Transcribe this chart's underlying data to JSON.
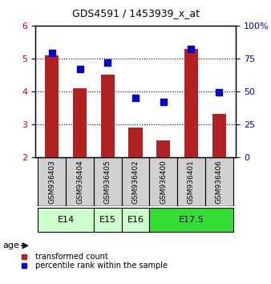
{
  "title": "GDS4591 / 1453939_x_at",
  "samples": [
    "GSM936403",
    "GSM936404",
    "GSM936405",
    "GSM936402",
    "GSM936400",
    "GSM936401",
    "GSM936406"
  ],
  "bar_values": [
    5.1,
    4.1,
    4.5,
    2.9,
    2.5,
    5.3,
    3.3
  ],
  "dot_values": [
    79,
    67,
    72,
    45,
    42,
    82,
    49
  ],
  "bar_color": "#b22222",
  "dot_color": "#0000cc",
  "ylim_left": [
    2,
    6
  ],
  "ylim_right": [
    0,
    100
  ],
  "yticks_left": [
    2,
    3,
    4,
    5,
    6
  ],
  "yticks_right": [
    0,
    25,
    50,
    75,
    100
  ],
  "ytick_labels_right": [
    "0",
    "25",
    "50",
    "75",
    "100%"
  ],
  "age_groups": [
    {
      "label": "E14",
      "samples": [
        "GSM936403",
        "GSM936404"
      ],
      "color": "#ccffcc"
    },
    {
      "label": "E15",
      "samples": [
        "GSM936405"
      ],
      "color": "#ccffcc"
    },
    {
      "label": "E16",
      "samples": [
        "GSM936402"
      ],
      "color": "#ccffcc"
    },
    {
      "label": "E17.5",
      "samples": [
        "GSM936400",
        "GSM936401",
        "GSM936406"
      ],
      "color": "#33dd33"
    }
  ],
  "legend_bar_label": "transformed count",
  "legend_dot_label": "percentile rank within the sample",
  "age_label": "age",
  "background_color": "#ffffff",
  "tick_label_color_left": "#cc0000",
  "tick_label_color_right": "#0000cc",
  "sample_bg_color": "#d0d0d0"
}
